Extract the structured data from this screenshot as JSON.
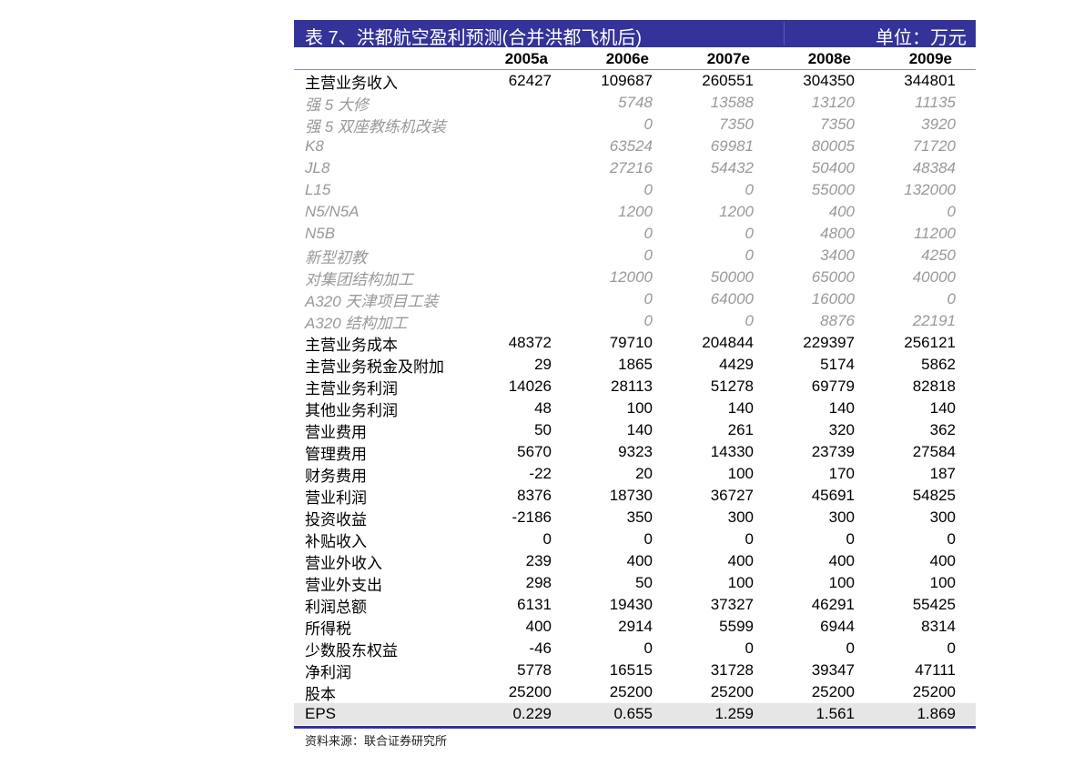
{
  "title": "表 7、洪都航空盈利预测(合并洪都飞机后)",
  "unit": "单位：万元",
  "columns": [
    "2005a",
    "2006e",
    "2007e",
    "2008e",
    "2009e"
  ],
  "rows": [
    {
      "label": "主营业务收入",
      "values": [
        "62427",
        "109687",
        "260551",
        "304350",
        "344801"
      ],
      "sub": false
    },
    {
      "label": "强 5 大修",
      "values": [
        "",
        "5748",
        "13588",
        "13120",
        "11135"
      ],
      "sub": true
    },
    {
      "label": "强 5 双座教练机改装",
      "values": [
        "",
        "0",
        "7350",
        "7350",
        "3920"
      ],
      "sub": true
    },
    {
      "label": "K8",
      "values": [
        "",
        "63524",
        "69981",
        "80005",
        "71720"
      ],
      "sub": true
    },
    {
      "label": "JL8",
      "values": [
        "",
        "27216",
        "54432",
        "50400",
        "48384"
      ],
      "sub": true
    },
    {
      "label": "L15",
      "values": [
        "",
        "0",
        "0",
        "55000",
        "132000"
      ],
      "sub": true
    },
    {
      "label": "N5/N5A",
      "values": [
        "",
        "1200",
        "1200",
        "400",
        "0"
      ],
      "sub": true
    },
    {
      "label": "N5B",
      "values": [
        "",
        "0",
        "0",
        "4800",
        "11200"
      ],
      "sub": true
    },
    {
      "label": "新型初教",
      "values": [
        "",
        "0",
        "0",
        "3400",
        "4250"
      ],
      "sub": true
    },
    {
      "label": "对集团结构加工",
      "values": [
        "",
        "12000",
        "50000",
        "65000",
        "40000"
      ],
      "sub": true
    },
    {
      "label": "A320 天津项目工装",
      "values": [
        "",
        "0",
        "64000",
        "16000",
        "0"
      ],
      "sub": true
    },
    {
      "label": "A320 结构加工",
      "values": [
        "",
        "0",
        "0",
        "8876",
        "22191"
      ],
      "sub": true
    },
    {
      "label": "主营业务成本",
      "values": [
        "48372",
        "79710",
        "204844",
        "229397",
        "256121"
      ],
      "sub": false
    },
    {
      "label": "主营业务税金及附加",
      "values": [
        "29",
        "1865",
        "4429",
        "5174",
        "5862"
      ],
      "sub": false
    },
    {
      "label": "主营业务利润",
      "values": [
        "14026",
        "28113",
        "51278",
        "69779",
        "82818"
      ],
      "sub": false
    },
    {
      "label": "其他业务利润",
      "values": [
        "48",
        "100",
        "140",
        "140",
        "140"
      ],
      "sub": false
    },
    {
      "label": "营业费用",
      "values": [
        "50",
        "140",
        "261",
        "320",
        "362"
      ],
      "sub": false
    },
    {
      "label": "管理费用",
      "values": [
        "5670",
        "9323",
        "14330",
        "23739",
        "27584"
      ],
      "sub": false
    },
    {
      "label": "财务费用",
      "values": [
        "-22",
        "20",
        "100",
        "170",
        "187"
      ],
      "sub": false
    },
    {
      "label": "营业利润",
      "values": [
        "8376",
        "18730",
        "36727",
        "45691",
        "54825"
      ],
      "sub": false
    },
    {
      "label": "投资收益",
      "values": [
        "-2186",
        "350",
        "300",
        "300",
        "300"
      ],
      "sub": false
    },
    {
      "label": "补贴收入",
      "values": [
        "0",
        "0",
        "0",
        "0",
        "0"
      ],
      "sub": false
    },
    {
      "label": "营业外收入",
      "values": [
        "239",
        "400",
        "400",
        "400",
        "400"
      ],
      "sub": false
    },
    {
      "label": "营业外支出",
      "values": [
        "298",
        "50",
        "100",
        "100",
        "100"
      ],
      "sub": false
    },
    {
      "label": "利润总额",
      "values": [
        "6131",
        "19430",
        "37327",
        "46291",
        "55425"
      ],
      "sub": false
    },
    {
      "label": "所得税",
      "values": [
        "400",
        "2914",
        "5599",
        "6944",
        "8314"
      ],
      "sub": false
    },
    {
      "label": "少数股东权益",
      "values": [
        "-46",
        "0",
        "0",
        "0",
        "0"
      ],
      "sub": false
    },
    {
      "label": "净利润",
      "values": [
        "5778",
        "16515",
        "31728",
        "39347",
        "47111"
      ],
      "sub": false
    },
    {
      "label": "股本",
      "values": [
        "25200",
        "25200",
        "25200",
        "25200",
        "25200"
      ],
      "sub": false
    },
    {
      "label": "EPS",
      "values": [
        "0.229",
        "0.655",
        "1.259",
        "1.561",
        "1.869"
      ],
      "sub": false
    }
  ],
  "source": "资料来源：联合证券研究所",
  "colors": {
    "header_bg": "#333399",
    "sub_text": "#999999",
    "eps_bg": "#e6e6e6"
  }
}
